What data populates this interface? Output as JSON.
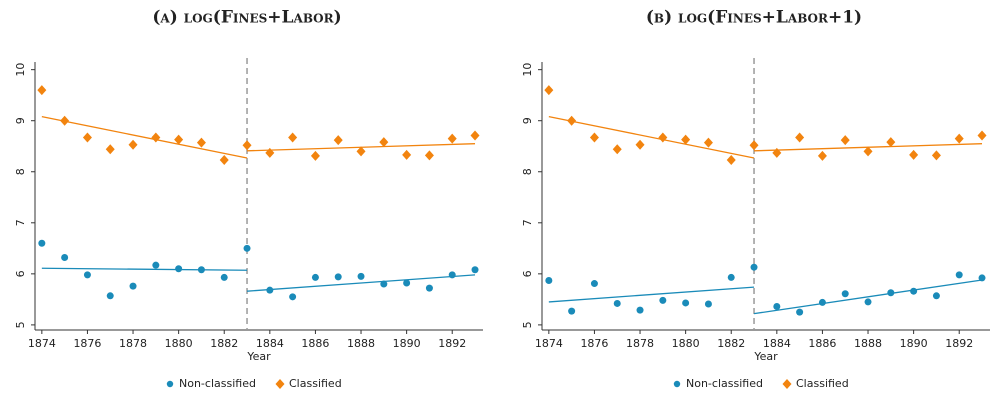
{
  "chart_data": [
    {
      "type": "scatter",
      "title": "(a) log(Fines+Labor)",
      "x_label": "Year",
      "x": [
        1874,
        1875,
        1876,
        1877,
        1878,
        1879,
        1880,
        1881,
        1882,
        1883,
        1884,
        1885,
        1886,
        1887,
        1888,
        1889,
        1890,
        1891,
        1892,
        1893
      ],
      "xlim": [
        1873.7,
        1893.35
      ],
      "xticks": [
        1874,
        1876,
        1878,
        1880,
        1882,
        1884,
        1886,
        1888,
        1890,
        1892
      ],
      "ylim": [
        4.9,
        10.15
      ],
      "yticks": [
        5,
        6,
        7,
        8,
        9,
        10
      ],
      "vline": 1883,
      "series": [
        {
          "name": "Non-classified",
          "color": "#1a8bb9",
          "marker": "circle",
          "values": [
            6.6,
            6.32,
            5.98,
            5.57,
            5.76,
            6.17,
            6.1,
            6.08,
            5.93,
            6.5,
            5.68,
            5.55,
            5.93,
            5.94,
            5.95,
            5.8,
            5.82,
            5.72,
            5.98,
            6.08
          ],
          "fit": [
            {
              "x": [
                1874,
                1883
              ],
              "values": [
                6.11,
                6.07
              ]
            },
            {
              "x": [
                1883,
                1893
              ],
              "values": [
                5.66,
                5.98
              ]
            }
          ]
        },
        {
          "name": "Classified",
          "color": "#f2840f",
          "marker": "diamond",
          "values": [
            9.6,
            9.0,
            8.67,
            8.44,
            8.53,
            8.67,
            8.63,
            8.57,
            8.23,
            8.52,
            8.37,
            8.67,
            8.31,
            8.62,
            8.4,
            8.58,
            8.33,
            8.32,
            8.65,
            8.71
          ],
          "fit": [
            {
              "x": [
                1874,
                1883
              ],
              "values": [
                9.08,
                8.27
              ]
            },
            {
              "x": [
                1883,
                1893
              ],
              "values": [
                8.41,
                8.55
              ]
            }
          ]
        }
      ]
    },
    {
      "type": "scatter",
      "title": "(b) log(Fines+Labor+1)",
      "x_label": "Year",
      "x": [
        1874,
        1875,
        1876,
        1877,
        1878,
        1879,
        1880,
        1881,
        1882,
        1883,
        1884,
        1885,
        1886,
        1887,
        1888,
        1889,
        1890,
        1891,
        1892,
        1893
      ],
      "xlim": [
        1873.7,
        1893.35
      ],
      "xticks": [
        1874,
        1876,
        1878,
        1880,
        1882,
        1884,
        1886,
        1888,
        1890,
        1892
      ],
      "ylim": [
        4.9,
        10.15
      ],
      "yticks": [
        5,
        6,
        7,
        8,
        9,
        10
      ],
      "vline": 1883,
      "series": [
        {
          "name": "Non-classified",
          "color": "#1a8bb9",
          "marker": "circle",
          "values": [
            5.87,
            5.27,
            5.81,
            5.42,
            5.29,
            5.48,
            5.43,
            5.41,
            5.93,
            6.13,
            5.36,
            5.25,
            5.44,
            5.61,
            5.45,
            5.63,
            5.66,
            5.57,
            5.98,
            5.92
          ],
          "fit": [
            {
              "x": [
                1874,
                1883
              ],
              "values": [
                5.45,
                5.74
              ]
            },
            {
              "x": [
                1883,
                1893
              ],
              "values": [
                5.22,
                5.88
              ]
            }
          ]
        },
        {
          "name": "Classified",
          "color": "#f2840f",
          "marker": "diamond",
          "values": [
            9.6,
            9.0,
            8.67,
            8.44,
            8.53,
            8.67,
            8.63,
            8.57,
            8.23,
            8.52,
            8.37,
            8.67,
            8.31,
            8.62,
            8.4,
            8.58,
            8.33,
            8.32,
            8.65,
            8.71
          ],
          "fit": [
            {
              "x": [
                1874,
                1883
              ],
              "values": [
                9.08,
                8.27
              ]
            },
            {
              "x": [
                1883,
                1893
              ],
              "values": [
                8.41,
                8.55
              ]
            }
          ]
        }
      ]
    }
  ]
}
